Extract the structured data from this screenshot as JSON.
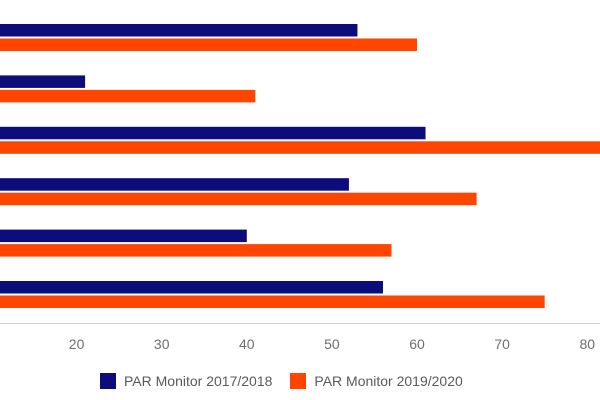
{
  "chart_data": {
    "type": "bar",
    "orientation": "horizontal",
    "title": "",
    "xlabel": "",
    "ylabel": "",
    "categories": [
      "",
      "",
      "",
      "",
      "",
      ""
    ],
    "series": [
      {
        "name": "PAR Monitor 2017/2018",
        "color": "#0c0c7a",
        "values": [
          53,
          21,
          61,
          52,
          40,
          56
        ]
      },
      {
        "name": "PAR Monitor 2019/2020",
        "color": "#ff4500",
        "values": [
          60,
          41,
          82,
          67,
          57,
          75
        ]
      }
    ],
    "xlim": [
      11,
      81.5
    ],
    "xticks": [
      "20",
      "30",
      "40",
      "50",
      "60",
      "70",
      "80"
    ],
    "grid": false,
    "legend": "bottom"
  }
}
